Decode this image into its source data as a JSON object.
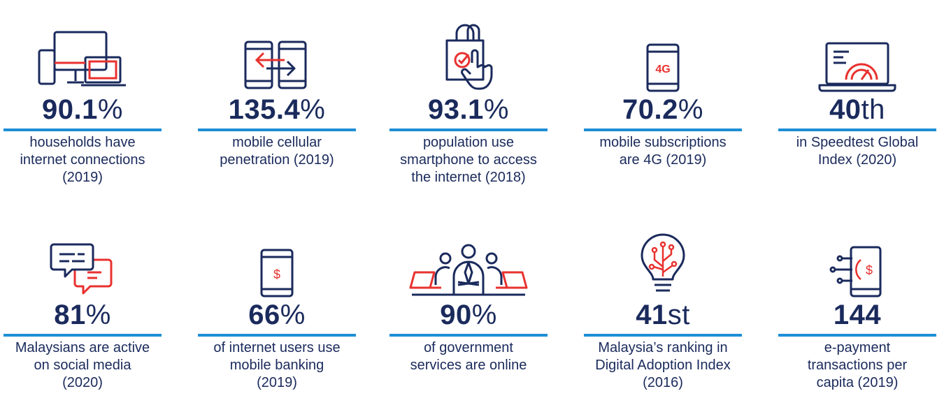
{
  "stats": [
    {
      "value": "90.1",
      "suffix": "%",
      "line1": "households have",
      "line2": "internet connections",
      "line3": "(2019)",
      "icon": "devices-icon"
    },
    {
      "value": "135.4",
      "suffix": "%",
      "line1": "mobile cellular",
      "line2": "penetration (2019)",
      "line3": "",
      "icon": "phone-transfer-icon"
    },
    {
      "value": "93.1",
      "suffix": "%",
      "line1": "population use",
      "line2": "smartphone to access",
      "line3": "the internet (2018)",
      "icon": "shopping-bag-tap-icon"
    },
    {
      "value": "70.2",
      "suffix": "%",
      "line1": "mobile subscriptions",
      "line2": "are 4G (2019)",
      "line3": "",
      "icon": "phone-4g-icon",
      "icon_text": "4G"
    },
    {
      "value": "40",
      "suffix": "th",
      "line1": "in Speedtest Global",
      "line2": "Index (2020)",
      "line3": "",
      "icon": "laptop-speedometer-icon"
    },
    {
      "value": "81",
      "suffix": "%",
      "line1": "Malaysians are active",
      "line2": "on social media",
      "line3": "(2020)",
      "icon": "chat-bubbles-icon"
    },
    {
      "value": "66",
      "suffix": "%",
      "line1": "of internet users use",
      "line2": "mobile banking",
      "line3": "(2019)",
      "icon": "phone-dollar-icon",
      "icon_text": "$"
    },
    {
      "value": "90",
      "suffix": "%",
      "line1": "of government",
      "line2": "services are online",
      "line3": "",
      "icon": "team-meeting-icon"
    },
    {
      "value": "41",
      "suffix": "st",
      "line1": "Malaysia’s ranking in",
      "line2": "Digital Adoption Index",
      "line3": "(2016)",
      "icon": "lightbulb-circuit-icon"
    },
    {
      "value": "144",
      "suffix": "",
      "line1": "e-payment",
      "line2": "transactions per",
      "line3": "capita (2019)",
      "icon": "phone-payment-icon",
      "icon_text": "$"
    }
  ],
  "colors": {
    "navy": "#1a2a5c",
    "red": "#e8322f",
    "blue": "#1e8fd6"
  }
}
